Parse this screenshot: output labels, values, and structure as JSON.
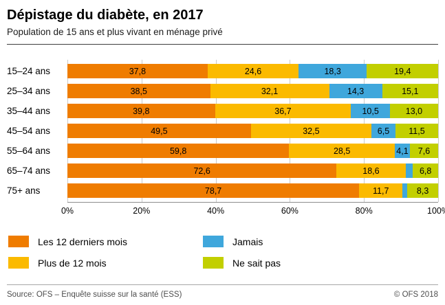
{
  "title": "Dépistage du diabète, en 2017",
  "subtitle": "Population de 15 ans et plus vivant en ménage privé",
  "chart_data": {
    "type": "bar",
    "orientation": "horizontal",
    "stacked": true,
    "unit": "%",
    "xlim": [
      0,
      100
    ],
    "grid": true,
    "legend_position": "bottom",
    "x_ticks": [
      "0%",
      "20%",
      "40%",
      "60%",
      "80%",
      "100%"
    ],
    "categories": [
      "15–24 ans",
      "25–34 ans",
      "35–44 ans",
      "45–54 ans",
      "55–64 ans",
      "65–74 ans",
      "75+ ans"
    ],
    "series": [
      {
        "name": "Les 12 derniers mois",
        "color": "#ef7c00",
        "values": [
          37.8,
          38.5,
          39.8,
          49.5,
          59.8,
          72.6,
          78.7
        ],
        "labels": [
          "37,8",
          "38,5",
          "39,8",
          "49,5",
          "59,8",
          "72,6",
          "78,7"
        ]
      },
      {
        "name": "Plus de 12 mois",
        "color": "#fbba00",
        "values": [
          24.6,
          32.1,
          36.7,
          32.5,
          28.5,
          18.6,
          11.7
        ],
        "labels": [
          "24,6",
          "32,1",
          "36,7",
          "32,5",
          "28,5",
          "18,6",
          "11,7"
        ]
      },
      {
        "name": "Jamais",
        "color": "#3fa7dc",
        "values": [
          18.3,
          14.3,
          10.5,
          6.5,
          4.1,
          2.0,
          1.3
        ],
        "labels": [
          "18,3",
          "14,3",
          "10,5",
          "6,5",
          "4,1",
          "",
          ""
        ]
      },
      {
        "name": "Ne sait pas",
        "color": "#c2cf00",
        "values": [
          19.4,
          15.1,
          13.0,
          11.5,
          7.6,
          6.8,
          8.3
        ],
        "labels": [
          "19,4",
          "15,1",
          "13,0",
          "11,5",
          "7,6",
          "6,8",
          "8,3"
        ]
      }
    ]
  },
  "footer": {
    "source": "Source: OFS – Enquête suisse sur la santé (ESS)",
    "copyright": "© OFS 2018"
  }
}
